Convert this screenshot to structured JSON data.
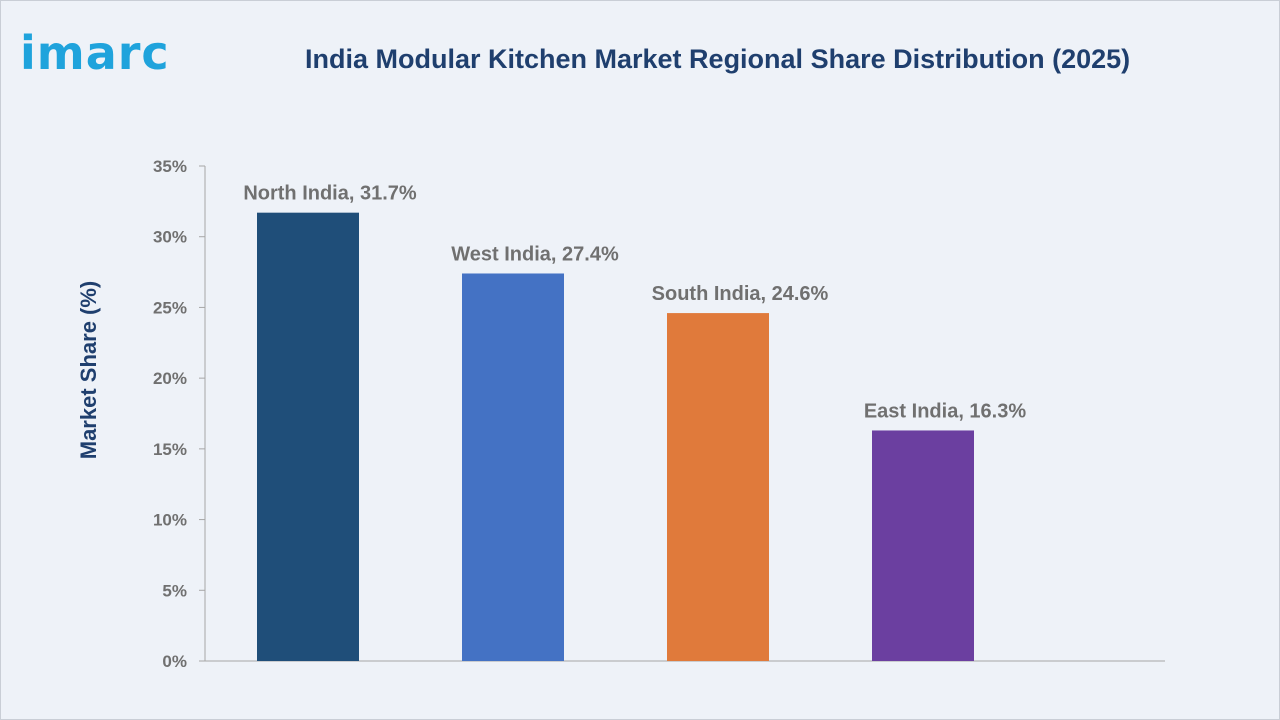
{
  "brand": {
    "logo_text": "imarc"
  },
  "colors": {
    "title": "#1f3f6e",
    "logo": "#1fa3dc",
    "axis_label": "#1f3f6e",
    "tick_label": "#707070",
    "data_label": "#707070"
  },
  "chart_data": {
    "type": "bar",
    "title": "India Modular Kitchen Market Regional Share Distribution (2025)",
    "xlabel": "",
    "ylabel": "Market Share (%)",
    "ylim": [
      0,
      35
    ],
    "yticks": [
      "0%",
      "5%",
      "10%",
      "15%",
      "20%",
      "25%",
      "30%",
      "35%"
    ],
    "grid": false,
    "categories": [
      "North India",
      "West India",
      "South India",
      "East India"
    ],
    "values": [
      31.7,
      27.4,
      24.6,
      16.3
    ],
    "data_labels": [
      "North India, 31.7%",
      "West India, 27.4%",
      "South India, 24.6%",
      "East India, 16.3%"
    ],
    "bar_colors": [
      "#1f4e79",
      "#4472c4",
      "#e07a3b",
      "#6b3fa0"
    ]
  }
}
